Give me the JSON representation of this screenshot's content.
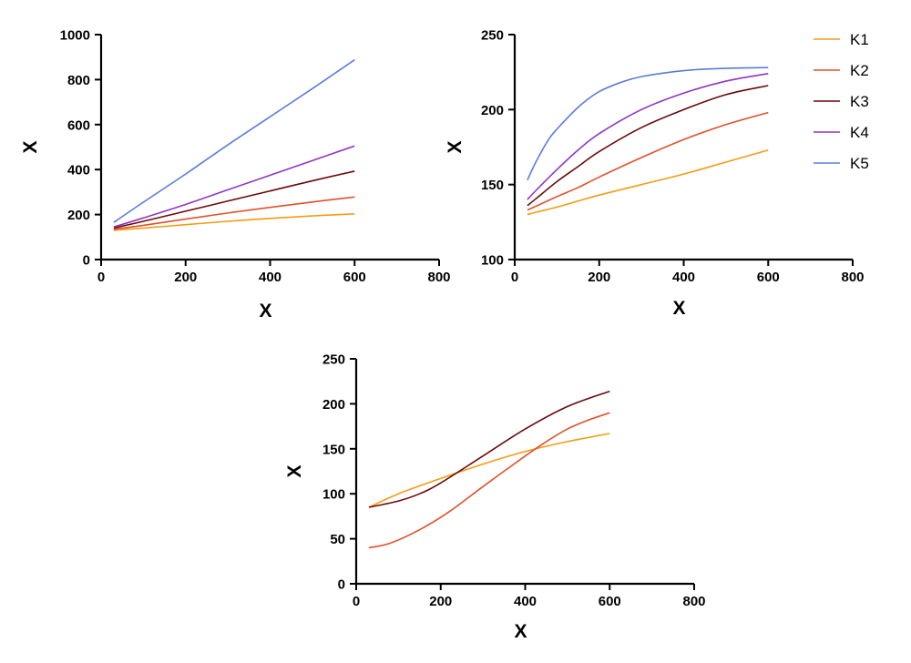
{
  "chart_data": [
    {
      "type": "line",
      "xlabel": "X",
      "ylabel": "X",
      "xlim": [
        0,
        800
      ],
      "ylim": [
        0,
        1000
      ],
      "x_ticks": [
        0,
        200,
        400,
        600,
        800
      ],
      "y_ticks": [
        0,
        200,
        400,
        600,
        800,
        1000
      ],
      "grid": false,
      "series": [
        {
          "name": "K1",
          "color": "#f39c12",
          "points": [
            [
              30,
              130
            ],
            [
              100,
              140
            ],
            [
              200,
              155
            ],
            [
              300,
              170
            ],
            [
              400,
              183
            ],
            [
              500,
              194
            ],
            [
              600,
              203
            ]
          ]
        },
        {
          "name": "K2",
          "color": "#e0512b",
          "points": [
            [
              30,
              135
            ],
            [
              100,
              152
            ],
            [
              200,
              180
            ],
            [
              300,
              207
            ],
            [
              400,
              232
            ],
            [
              500,
              256
            ],
            [
              600,
              278
            ]
          ]
        },
        {
          "name": "K3",
          "color": "#6b0a0a",
          "points": [
            [
              30,
              140
            ],
            [
              100,
              170
            ],
            [
              200,
              215
            ],
            [
              300,
              260
            ],
            [
              400,
              305
            ],
            [
              500,
              350
            ],
            [
              600,
              393
            ]
          ]
        },
        {
          "name": "K4",
          "color": "#8e36c4",
          "points": [
            [
              30,
              145
            ],
            [
              100,
              185
            ],
            [
              200,
              245
            ],
            [
              300,
              310
            ],
            [
              400,
              375
            ],
            [
              500,
              440
            ],
            [
              600,
              505
            ]
          ]
        },
        {
          "name": "K5",
          "color": "#5b7bdc",
          "points": [
            [
              30,
              165
            ],
            [
              100,
              255
            ],
            [
              200,
              380
            ],
            [
              300,
              510
            ],
            [
              400,
              635
            ],
            [
              500,
              760
            ],
            [
              600,
              888
            ]
          ]
        }
      ]
    },
    {
      "type": "line",
      "xlabel": "X",
      "ylabel": "X",
      "xlim": [
        0,
        800
      ],
      "ylim": [
        100,
        250
      ],
      "x_ticks": [
        0,
        200,
        400,
        600,
        800
      ],
      "y_ticks": [
        100,
        150,
        200,
        250
      ],
      "grid": false,
      "legend": {
        "position": "top-right",
        "entries": [
          "K1",
          "K2",
          "K3",
          "K4",
          "K5"
        ]
      },
      "series": [
        {
          "name": "K1",
          "color": "#f39c12",
          "points": [
            [
              30,
              130
            ],
            [
              50,
              131.5
            ],
            [
              100,
              135
            ],
            [
              150,
              139
            ],
            [
              200,
              143
            ],
            [
              300,
              150
            ],
            [
              400,
              157
            ],
            [
              500,
              165
            ],
            [
              600,
              173
            ]
          ]
        },
        {
          "name": "K2",
          "color": "#e0512b",
          "points": [
            [
              30,
              133
            ],
            [
              50,
              135.5
            ],
            [
              100,
              142
            ],
            [
              150,
              148
            ],
            [
              200,
              155
            ],
            [
              300,
              168
            ],
            [
              400,
              180
            ],
            [
              500,
              190
            ],
            [
              600,
              198
            ]
          ]
        },
        {
          "name": "K3",
          "color": "#6b0a0a",
          "points": [
            [
              30,
              136
            ],
            [
              50,
              140.5
            ],
            [
              100,
              152
            ],
            [
              150,
              162
            ],
            [
              200,
              172
            ],
            [
              300,
              188
            ],
            [
              400,
              200
            ],
            [
              500,
              210
            ],
            [
              600,
              216
            ]
          ]
        },
        {
          "name": "K4",
          "color": "#8e36c4",
          "points": [
            [
              30,
              140
            ],
            [
              50,
              146
            ],
            [
              100,
              160
            ],
            [
              150,
              173
            ],
            [
              200,
              184
            ],
            [
              300,
              200
            ],
            [
              400,
              211
            ],
            [
              500,
              219
            ],
            [
              600,
              224
            ]
          ]
        },
        {
          "name": "K5",
          "color": "#5b7bdc",
          "points": [
            [
              30,
              153
            ],
            [
              50,
              165
            ],
            [
              80,
              180
            ],
            [
              100,
              187
            ],
            [
              130,
              196
            ],
            [
              160,
              204
            ],
            [
              200,
              212
            ],
            [
              250,
              218
            ],
            [
              300,
              222
            ],
            [
              400,
              226
            ],
            [
              500,
              227.5
            ],
            [
              600,
              228
            ]
          ]
        }
      ]
    },
    {
      "type": "line",
      "xlabel": "X",
      "ylabel": "X",
      "xlim": [
        0,
        800
      ],
      "ylim": [
        0,
        250
      ],
      "x_ticks": [
        0,
        200,
        400,
        600,
        800
      ],
      "y_ticks": [
        0,
        50,
        100,
        150,
        200,
        250
      ],
      "grid": false,
      "series": [
        {
          "name": "",
          "color": "#f39c12",
          "points": [
            [
              30,
              85
            ],
            [
              100,
              100
            ],
            [
              200,
              117
            ],
            [
              300,
              133
            ],
            [
              400,
              147
            ],
            [
              500,
              158
            ],
            [
              600,
              167
            ]
          ]
        },
        {
          "name": "",
          "color": "#e0512b",
          "points": [
            [
              30,
              40
            ],
            [
              80,
              45
            ],
            [
              150,
              60
            ],
            [
              220,
              80
            ],
            [
              300,
              108
            ],
            [
              400,
              142
            ],
            [
              450,
              158
            ],
            [
              500,
              172
            ],
            [
              550,
              182
            ],
            [
              600,
              190
            ]
          ]
        },
        {
          "name": "",
          "color": "#6b0a0a",
          "points": [
            [
              30,
              85
            ],
            [
              100,
              92
            ],
            [
              150,
              100
            ],
            [
              200,
              112
            ],
            [
              300,
              142
            ],
            [
              400,
              172
            ],
            [
              500,
              197
            ],
            [
              600,
              214
            ]
          ]
        }
      ]
    }
  ]
}
